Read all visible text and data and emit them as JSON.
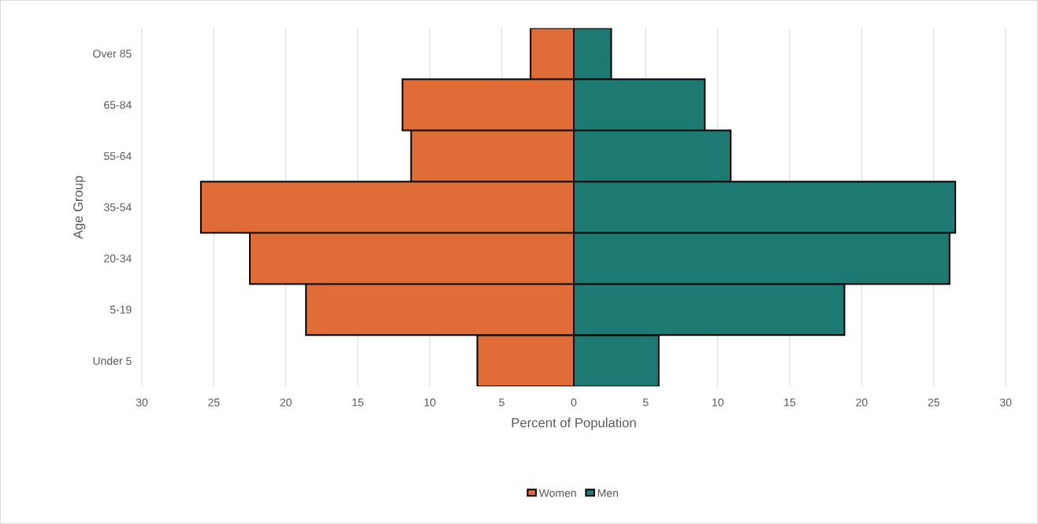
{
  "chart_data": {
    "type": "bar",
    "orientation": "horizontal",
    "xlabel": "Percent of Population",
    "ylabel": "Age Group",
    "categories": [
      "Over 85",
      "65-84",
      "55-64",
      "35-54",
      "20-34",
      "5-19",
      "Under 5"
    ],
    "series": [
      {
        "name": "Women",
        "color": "#e06c37",
        "values": [
          -3.0,
          -11.9,
          -11.3,
          -25.9,
          -22.5,
          -18.6,
          -6.7
        ]
      },
      {
        "name": "Men",
        "color": "#1d7a72",
        "values": [
          2.6,
          9.1,
          10.9,
          26.5,
          26.1,
          18.8,
          5.9
        ]
      }
    ],
    "xlim": [
      -30,
      30
    ],
    "xticks": [
      {
        "value": -30,
        "label": "30"
      },
      {
        "value": -25,
        "label": "25"
      },
      {
        "value": -20,
        "label": "20"
      },
      {
        "value": -15,
        "label": "15"
      },
      {
        "value": -10,
        "label": "10"
      },
      {
        "value": -5,
        "label": "5"
      },
      0,
      5,
      10,
      15,
      20,
      25,
      30
    ],
    "grid": "x",
    "legend": "bottom",
    "stacked": true
  }
}
